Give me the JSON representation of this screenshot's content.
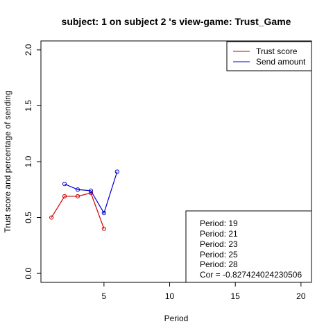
{
  "chart_data": {
    "type": "line",
    "title": "subject:  1  on subject  2 's view-game:  Trust_Game",
    "xlabel": "Period",
    "ylabel": "Trust score and percentage of sending",
    "xlim": [
      0.2,
      20.8
    ],
    "ylim": [
      -0.08,
      2.08
    ],
    "x_ticks": [
      5,
      10,
      15,
      20
    ],
    "y_ticks": [
      0.0,
      0.5,
      1.0,
      1.5,
      2.0
    ],
    "x_tick_labels": [
      "5",
      "10",
      "15",
      "20"
    ],
    "y_tick_labels": [
      "0.0",
      "0.5",
      "1.0",
      "1.5",
      "2.0"
    ],
    "grid": false,
    "legend_position": "top-right",
    "series": [
      {
        "name": "Trust score",
        "color": "#cc0000",
        "x": [
          1,
          2,
          3,
          4,
          5
        ],
        "y": [
          0.5,
          0.69,
          0.69,
          0.72,
          0.4
        ]
      },
      {
        "name": "Send amount",
        "color": "#0000cc",
        "x": [
          2,
          3,
          4,
          5,
          6
        ],
        "y": [
          0.8,
          0.75,
          0.74,
          0.54,
          0.91
        ]
      }
    ],
    "annotation_lines": [
      "Period:  19",
      "Period:  21",
      "Period:  23",
      "Period:  25",
      "Period:  28",
      "Cor =  -0.827424024230506"
    ]
  }
}
